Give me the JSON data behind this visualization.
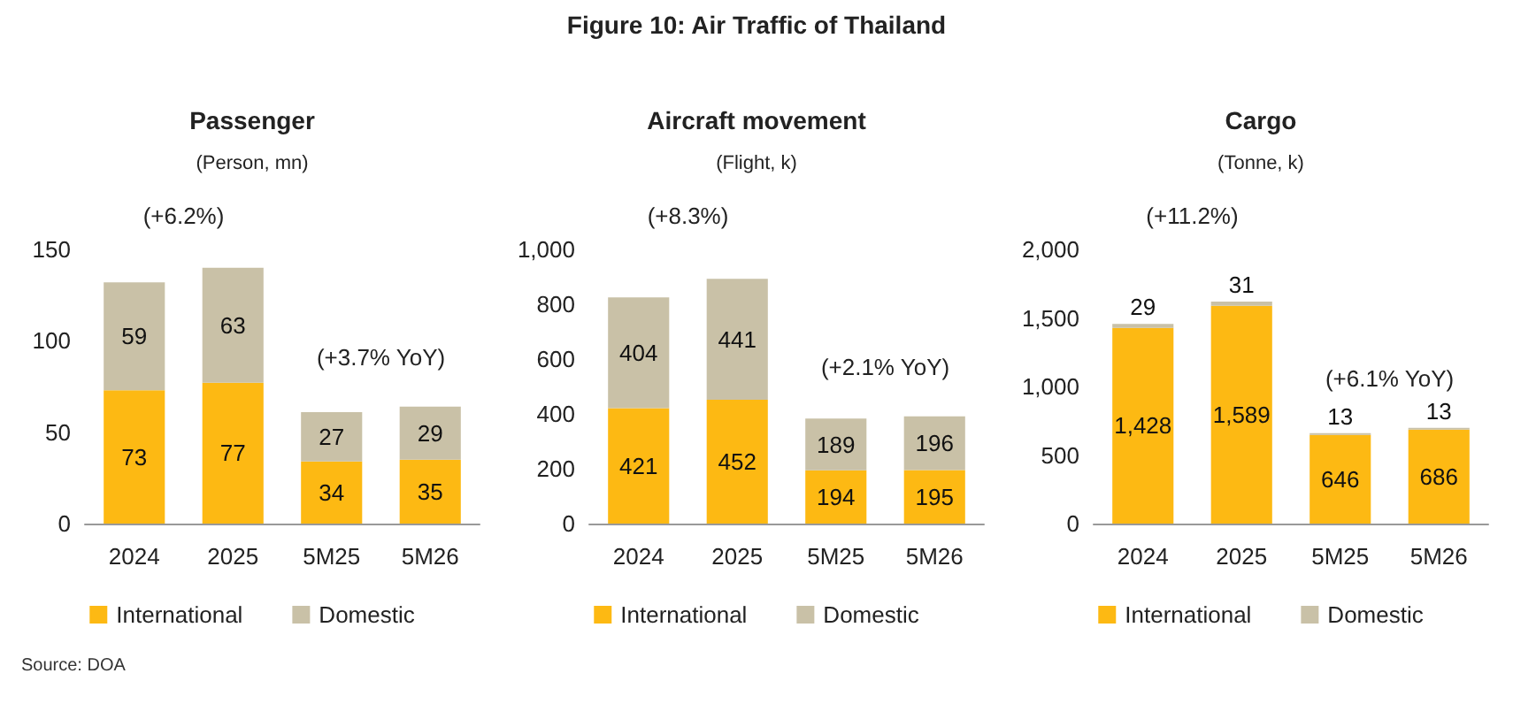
{
  "chart_data": [
    {
      "type": "bar",
      "stacked": true,
      "title": "Passenger",
      "subtitle": "(Person, mn)",
      "categories": [
        "2024",
        "2025",
        "5M25",
        "5M26"
      ],
      "series": [
        {
          "name": "International",
          "color": "#fdb913",
          "values": [
            73,
            77,
            34,
            35
          ],
          "value_labels": [
            "73",
            "77",
            "34",
            "35"
          ]
        },
        {
          "name": "Domestic",
          "color": "#c9c1a7",
          "values": [
            59,
            63,
            27,
            29
          ],
          "value_labels": [
            "59",
            "63",
            "27",
            "29"
          ]
        }
      ],
      "ylim": [
        0,
        150
      ],
      "yticks": [
        0,
        50,
        100,
        150
      ],
      "legend": "bottom",
      "grid": false,
      "annotations": [
        "Figure 10: Air Traffic of Thailand",
        "(+6.2%)",
        "(+3.7% YoY)",
        "Source: DOA"
      ]
    },
    {
      "type": "bar",
      "stacked": true,
      "title": "Aircraft movement",
      "subtitle": "(Flight, k)",
      "categories": [
        "2024",
        "2025",
        "5M25",
        "5M26"
      ],
      "series": [
        {
          "name": "International",
          "color": "#fdb913",
          "values": [
            421,
            452,
            194,
            195
          ],
          "value_labels": [
            "421",
            "452",
            "194",
            "195"
          ]
        },
        {
          "name": "Domestic",
          "color": "#c9c1a7",
          "values": [
            404,
            441,
            189,
            196
          ],
          "value_labels": [
            "404",
            "441",
            "189",
            "196"
          ]
        }
      ],
      "ylim": [
        0,
        1000
      ],
      "yticks": [
        0,
        200,
        400,
        600,
        800,
        {
          "value": 1000,
          "label": "1,000"
        }
      ],
      "legend": "bottom",
      "grid": false,
      "annotations": [
        "(+8.3%)",
        "(+2.1% YoY)"
      ]
    },
    {
      "type": "bar",
      "stacked": true,
      "title": "Cargo",
      "subtitle": "(Tonne, k)",
      "categories": [
        "2024",
        "2025",
        "5M25",
        "5M26"
      ],
      "series": [
        {
          "name": "International",
          "color": "#fdb913",
          "values": [
            1428,
            1589,
            646,
            686
          ],
          "value_labels": [
            "1,428",
            "1,589",
            "646",
            "686"
          ]
        },
        {
          "name": "Domestic",
          "color": "#c9c1a7",
          "values": [
            29,
            31,
            13,
            13
          ],
          "value_labels": [
            "29",
            "31",
            "13",
            "13"
          ]
        }
      ],
      "ylim": [
        0,
        2000
      ],
      "yticks": [
        0,
        500,
        {
          "value": 1000,
          "label": "1,000"
        },
        {
          "value": 1500,
          "label": "1,500"
        },
        {
          "value": 2000,
          "label": "2,000"
        }
      ],
      "legend": "bottom",
      "grid": false,
      "annotations": [
        "(+11.2%)",
        "(+6.1% YoY)"
      ]
    }
  ]
}
